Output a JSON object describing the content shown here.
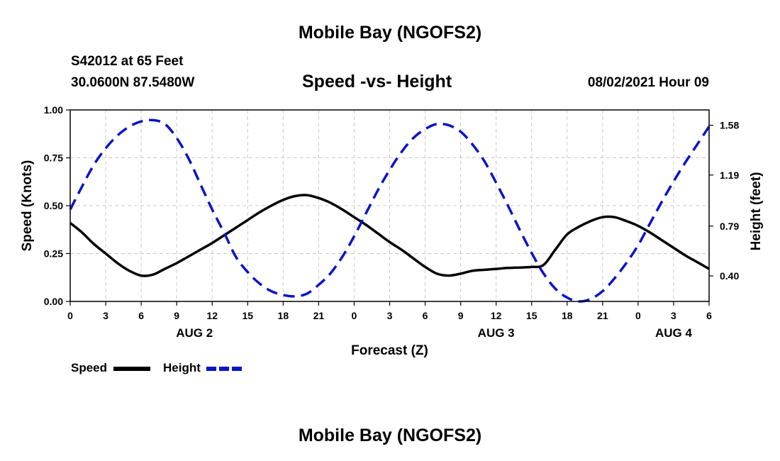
{
  "header": {
    "title": "Mobile Bay (NGOFS2)",
    "station": "S42012 at 65 Feet",
    "coords": "30.0600N  87.5480W",
    "subtitle": "Speed -vs- Height",
    "datetime": "08/02/2021 Hour 09"
  },
  "footer": {
    "title": "Mobile Bay (NGOFS2)"
  },
  "legend": {
    "speed_label": "Speed",
    "height_label": "Height"
  },
  "colors": {
    "speed": "#000000",
    "height": "#0a14c8",
    "grid": "#c8c8c8"
  },
  "chart_data": {
    "type": "line",
    "xlabel": "Forecast (Z)",
    "ylabel": "Speed (Knots)",
    "y2label": "Height (feet)",
    "xlim": [
      0,
      54
    ],
    "ylim": [
      0,
      1.0
    ],
    "y2lim": [
      0.2,
      1.7
    ],
    "x_tick_labels": [
      "0",
      "3",
      "6",
      "9",
      "12",
      "15",
      "18",
      "21",
      "0",
      "3",
      "6",
      "9",
      "12",
      "15",
      "18",
      "21",
      "0",
      "3",
      "6"
    ],
    "y_tick_values": [
      "0.00",
      "0.25",
      "0.50",
      "0.75",
      "1.00"
    ],
    "y2_tick_values": [
      "0.40",
      "0.79",
      "1.19",
      "1.58"
    ],
    "date_labels": [
      {
        "label": "AUG 2",
        "x": 10.5
      },
      {
        "label": "AUG 3",
        "x": 36
      },
      {
        "label": "AUG 4",
        "x": 51
      }
    ],
    "grid": true,
    "series": [
      {
        "name": "Speed",
        "axis": "left",
        "x": [
          0,
          1,
          2,
          3,
          4,
          5,
          6,
          7,
          8,
          9,
          10,
          11,
          12,
          13,
          14,
          15,
          16,
          17,
          18,
          19,
          20,
          21,
          22,
          23,
          24,
          25,
          26,
          27,
          28,
          29,
          30,
          31,
          32,
          33,
          34,
          35,
          36,
          37,
          38,
          39,
          40,
          41,
          42,
          43,
          44,
          45,
          46,
          47,
          48,
          49,
          50,
          51,
          52,
          53,
          54
        ],
        "values": [
          0.41,
          0.36,
          0.3,
          0.25,
          0.2,
          0.16,
          0.135,
          0.14,
          0.17,
          0.2,
          0.235,
          0.27,
          0.305,
          0.345,
          0.385,
          0.425,
          0.465,
          0.5,
          0.53,
          0.55,
          0.555,
          0.54,
          0.515,
          0.48,
          0.44,
          0.4,
          0.355,
          0.31,
          0.27,
          0.225,
          0.18,
          0.145,
          0.135,
          0.145,
          0.16,
          0.165,
          0.17,
          0.175,
          0.177,
          0.18,
          0.19,
          0.27,
          0.35,
          0.39,
          0.42,
          0.44,
          0.44,
          0.42,
          0.395,
          0.36,
          0.32,
          0.28,
          0.24,
          0.205,
          0.17
        ]
      },
      {
        "name": "Height",
        "axis": "right",
        "x": [
          0,
          1,
          2,
          3,
          4,
          5,
          6,
          7,
          8,
          9,
          10,
          11,
          12,
          13,
          14,
          15,
          16,
          17,
          18,
          19,
          20,
          21,
          22,
          23,
          24,
          25,
          26,
          27,
          28,
          29,
          30,
          31,
          32,
          33,
          34,
          35,
          36,
          37,
          38,
          39,
          40,
          41,
          42,
          43,
          44,
          45,
          46,
          47,
          48,
          49,
          50,
          51,
          52,
          53,
          54
        ],
        "values": [
          0.92,
          1.1,
          1.27,
          1.4,
          1.5,
          1.57,
          1.61,
          1.62,
          1.59,
          1.48,
          1.32,
          1.12,
          0.92,
          0.74,
          0.55,
          0.43,
          0.34,
          0.28,
          0.25,
          0.24,
          0.26,
          0.33,
          0.42,
          0.55,
          0.71,
          0.89,
          1.07,
          1.23,
          1.37,
          1.48,
          1.55,
          1.59,
          1.58,
          1.53,
          1.43,
          1.3,
          1.13,
          0.95,
          0.76,
          0.58,
          0.42,
          0.3,
          0.23,
          0.2,
          0.22,
          0.28,
          0.38,
          0.5,
          0.64,
          0.81,
          0.98,
          1.14,
          1.29,
          1.43,
          1.57
        ]
      }
    ]
  }
}
